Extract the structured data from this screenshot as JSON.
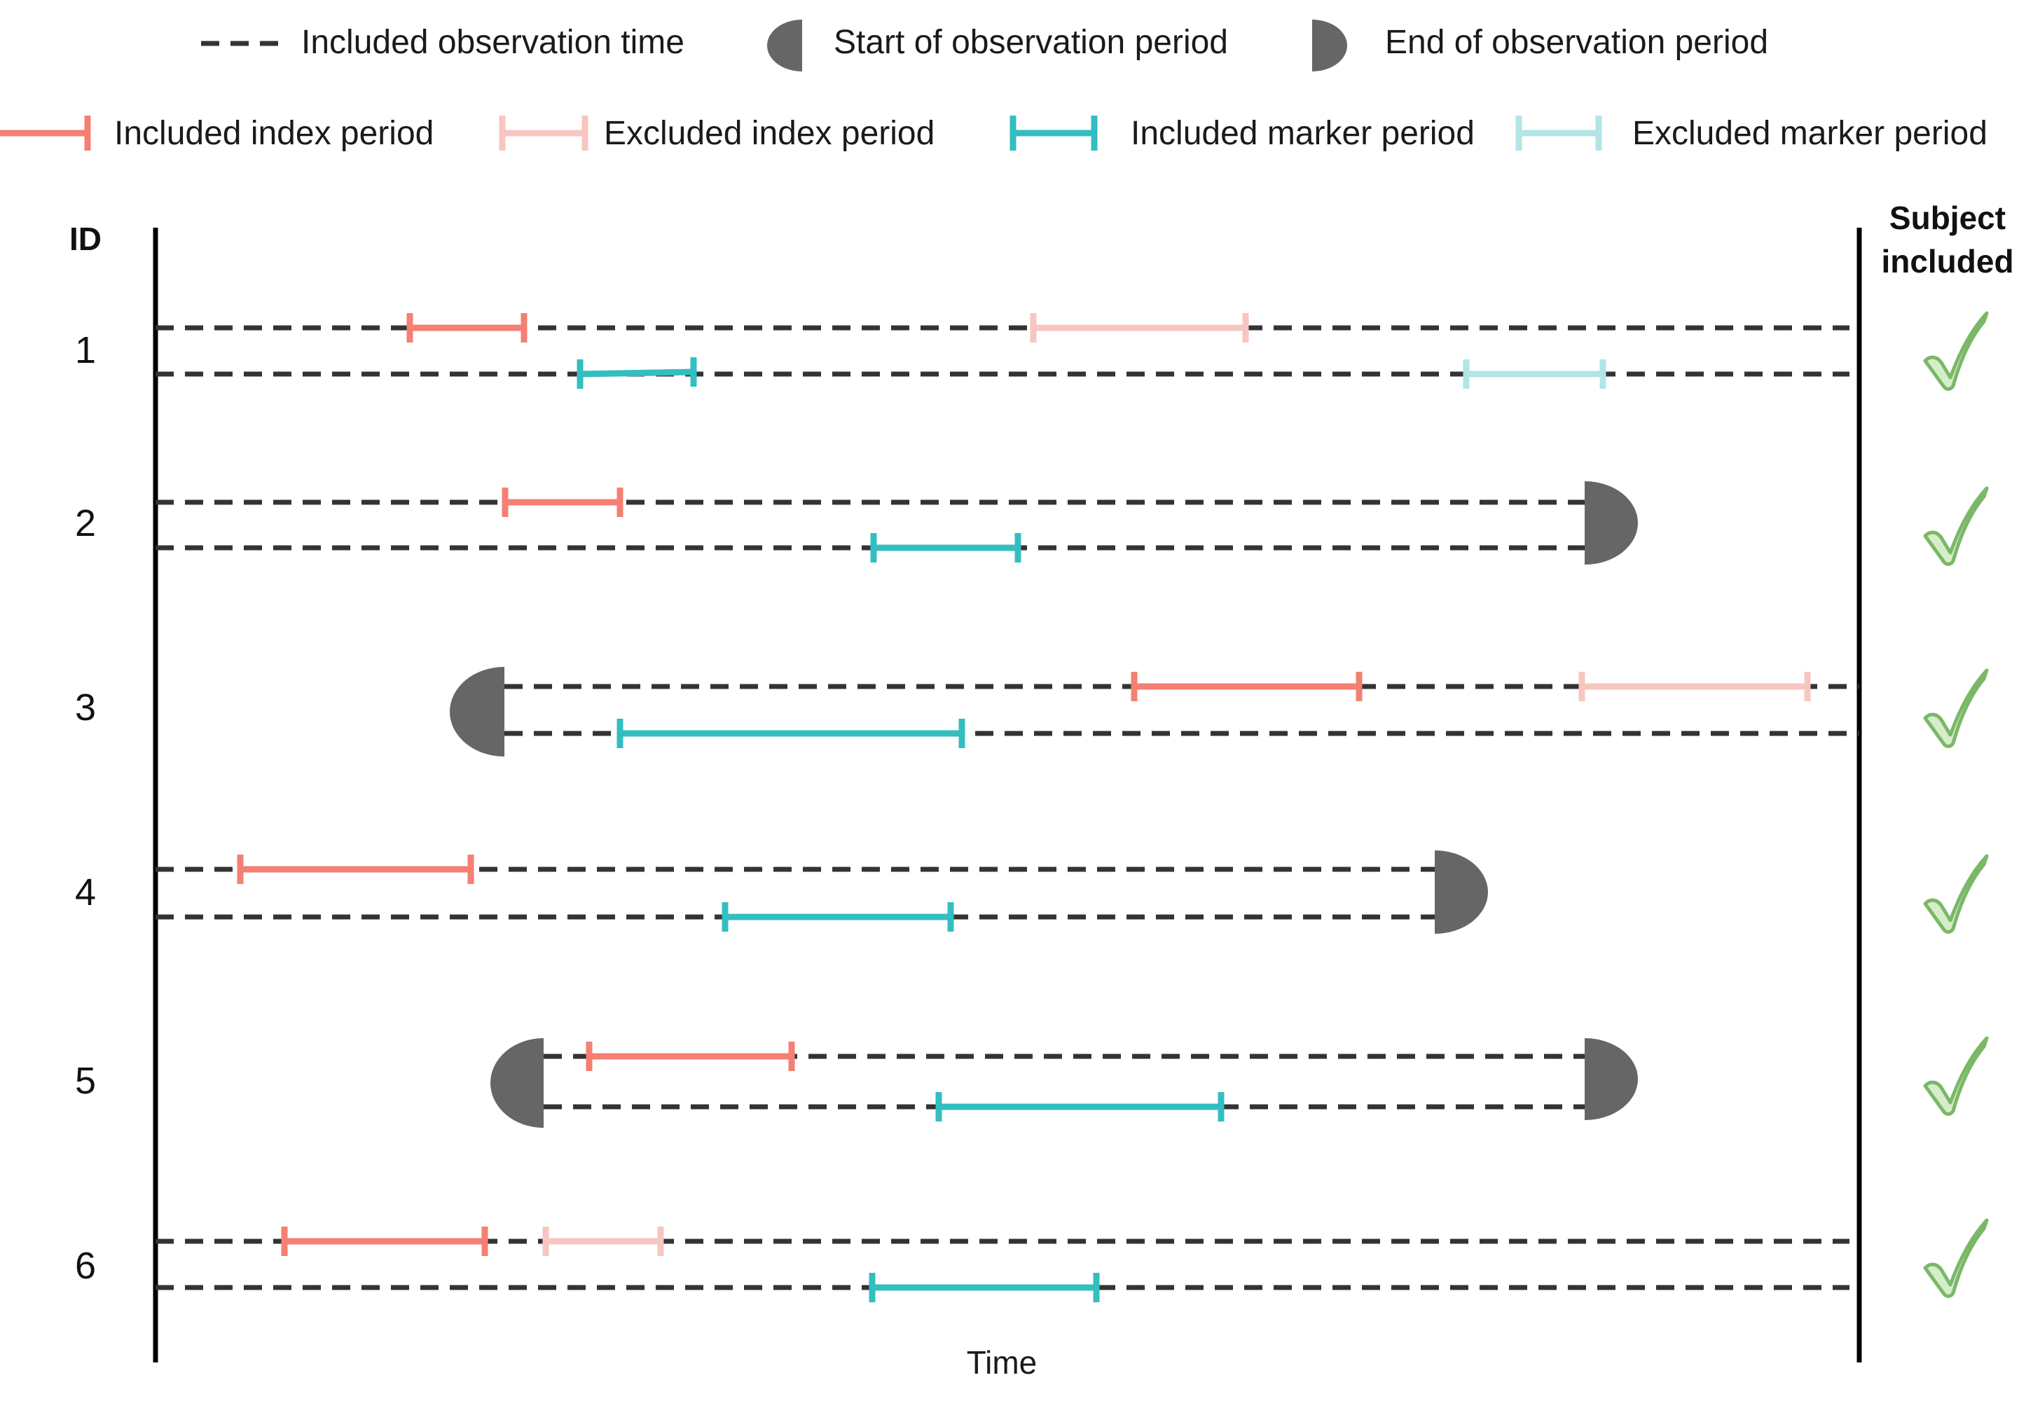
{
  "colors": {
    "included_index": "#F47F73",
    "excluded_index": "#F8C6C0",
    "included_marker": "#33BEC0",
    "excluded_marker": "#B2E5E5",
    "observation": "#333333",
    "period_cap": "#666666",
    "check_fill": "#D6EDCC",
    "check_stroke": "#7AB867"
  },
  "legend": {
    "observation_time": "Included observation time",
    "start_period": "Start of observation period",
    "end_period": "End of observation period",
    "included_index": "Included index period",
    "excluded_index": "Excluded index period",
    "included_marker": "Included marker period",
    "excluded_marker": "Excluded marker period"
  },
  "headers": {
    "id": "ID",
    "subject_included_line1": "Subject",
    "subject_included_line2": "included"
  },
  "axis": {
    "label": "Time"
  },
  "subjects": [
    {
      "id": "1",
      "included": true
    },
    {
      "id": "2",
      "included": true
    },
    {
      "id": "3",
      "included": true
    },
    {
      "id": "4",
      "included": true
    },
    {
      "id": "5",
      "included": true
    },
    {
      "id": "6",
      "included": true
    }
  ],
  "icons": {
    "start_cap": "half-disc-left-icon",
    "end_cap": "half-disc-right-icon",
    "included_mark": "checkmark-icon"
  }
}
